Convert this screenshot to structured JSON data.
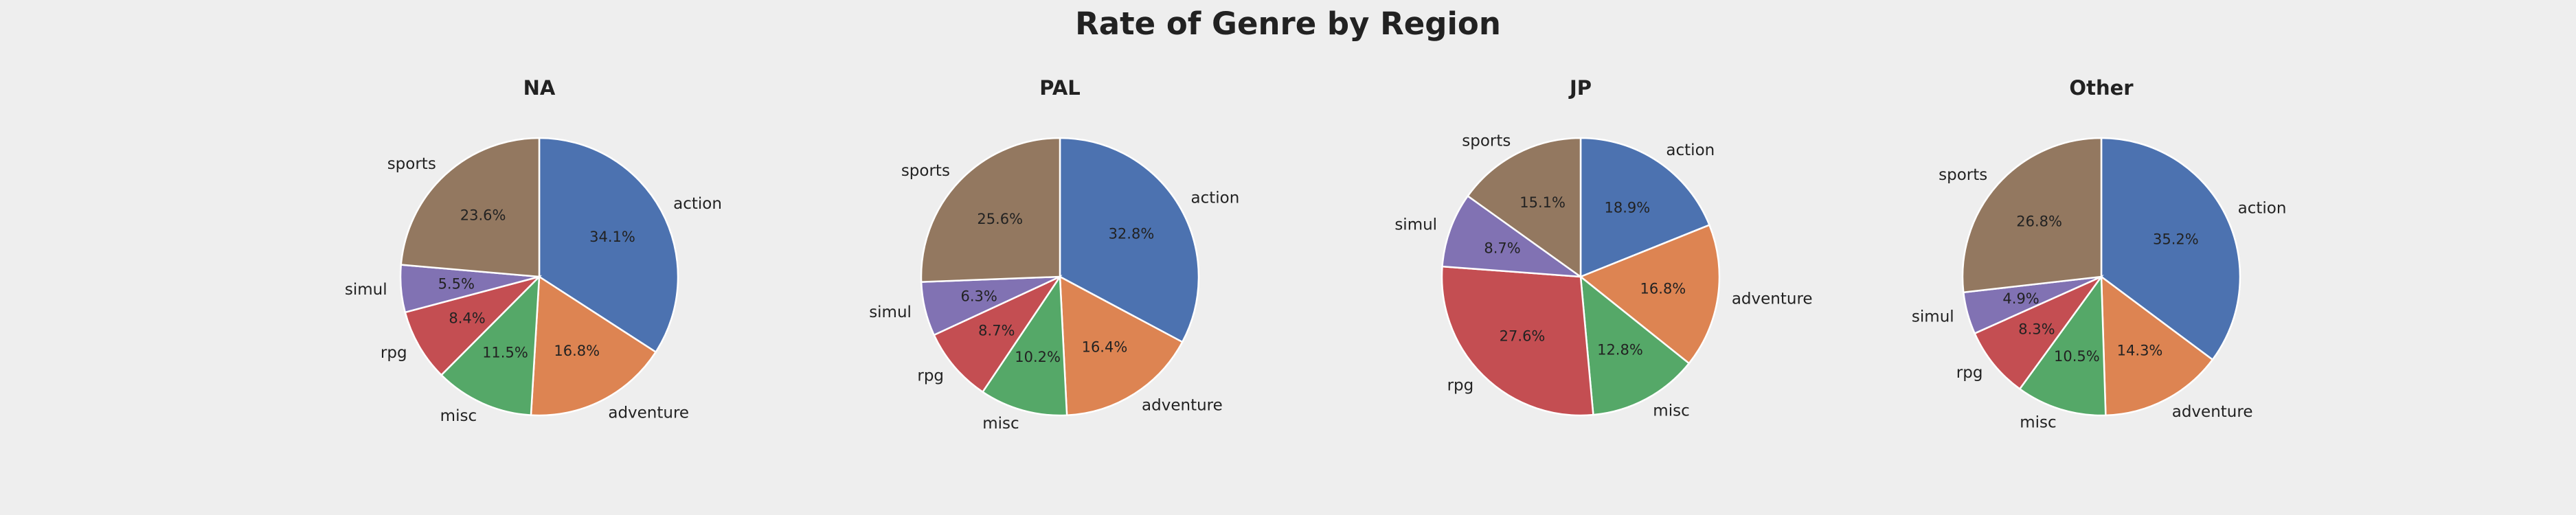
{
  "title": "Rate of Genre by Region",
  "colors": {
    "action": "#4c72b0",
    "adventure": "#dd8452",
    "misc": "#55a868",
    "rpg": "#c44e52",
    "simul": "#8172b3",
    "sports": "#937860"
  },
  "chart_data": [
    {
      "type": "pie",
      "title": "NA",
      "labels": [
        "action",
        "adventure",
        "misc",
        "rpg",
        "simul",
        "sports"
      ],
      "values": [
        34.1,
        16.8,
        11.5,
        8.4,
        5.5,
        23.6
      ],
      "value_labels": [
        "34.1%",
        "16.8%",
        "11.5%",
        "8.4%",
        "5.5%",
        "23.6%"
      ]
    },
    {
      "type": "pie",
      "title": "PAL",
      "labels": [
        "action",
        "adventure",
        "misc",
        "rpg",
        "simul",
        "sports"
      ],
      "values": [
        32.8,
        16.4,
        10.2,
        8.7,
        6.3,
        25.6
      ],
      "value_labels": [
        "32.8%",
        "16.4%",
        "10.2%",
        "8.7%",
        "6.3%",
        "25.6%"
      ]
    },
    {
      "type": "pie",
      "title": "JP",
      "labels": [
        "action",
        "adventure",
        "misc",
        "rpg",
        "simul",
        "sports"
      ],
      "values": [
        18.9,
        16.8,
        12.8,
        27.6,
        8.7,
        15.1
      ],
      "value_labels": [
        "18.9%",
        "16.8%",
        "12.8%",
        "27.6%",
        "8.7%",
        "15.1%"
      ]
    },
    {
      "type": "pie",
      "title": "Other",
      "labels": [
        "action",
        "adventure",
        "misc",
        "rpg",
        "simul",
        "sports"
      ],
      "values": [
        35.2,
        14.3,
        10.5,
        8.3,
        4.9,
        26.8
      ],
      "value_labels": [
        "35.2%",
        "14.3%",
        "10.5%",
        "8.3%",
        "4.9%",
        "26.8%"
      ]
    }
  ]
}
